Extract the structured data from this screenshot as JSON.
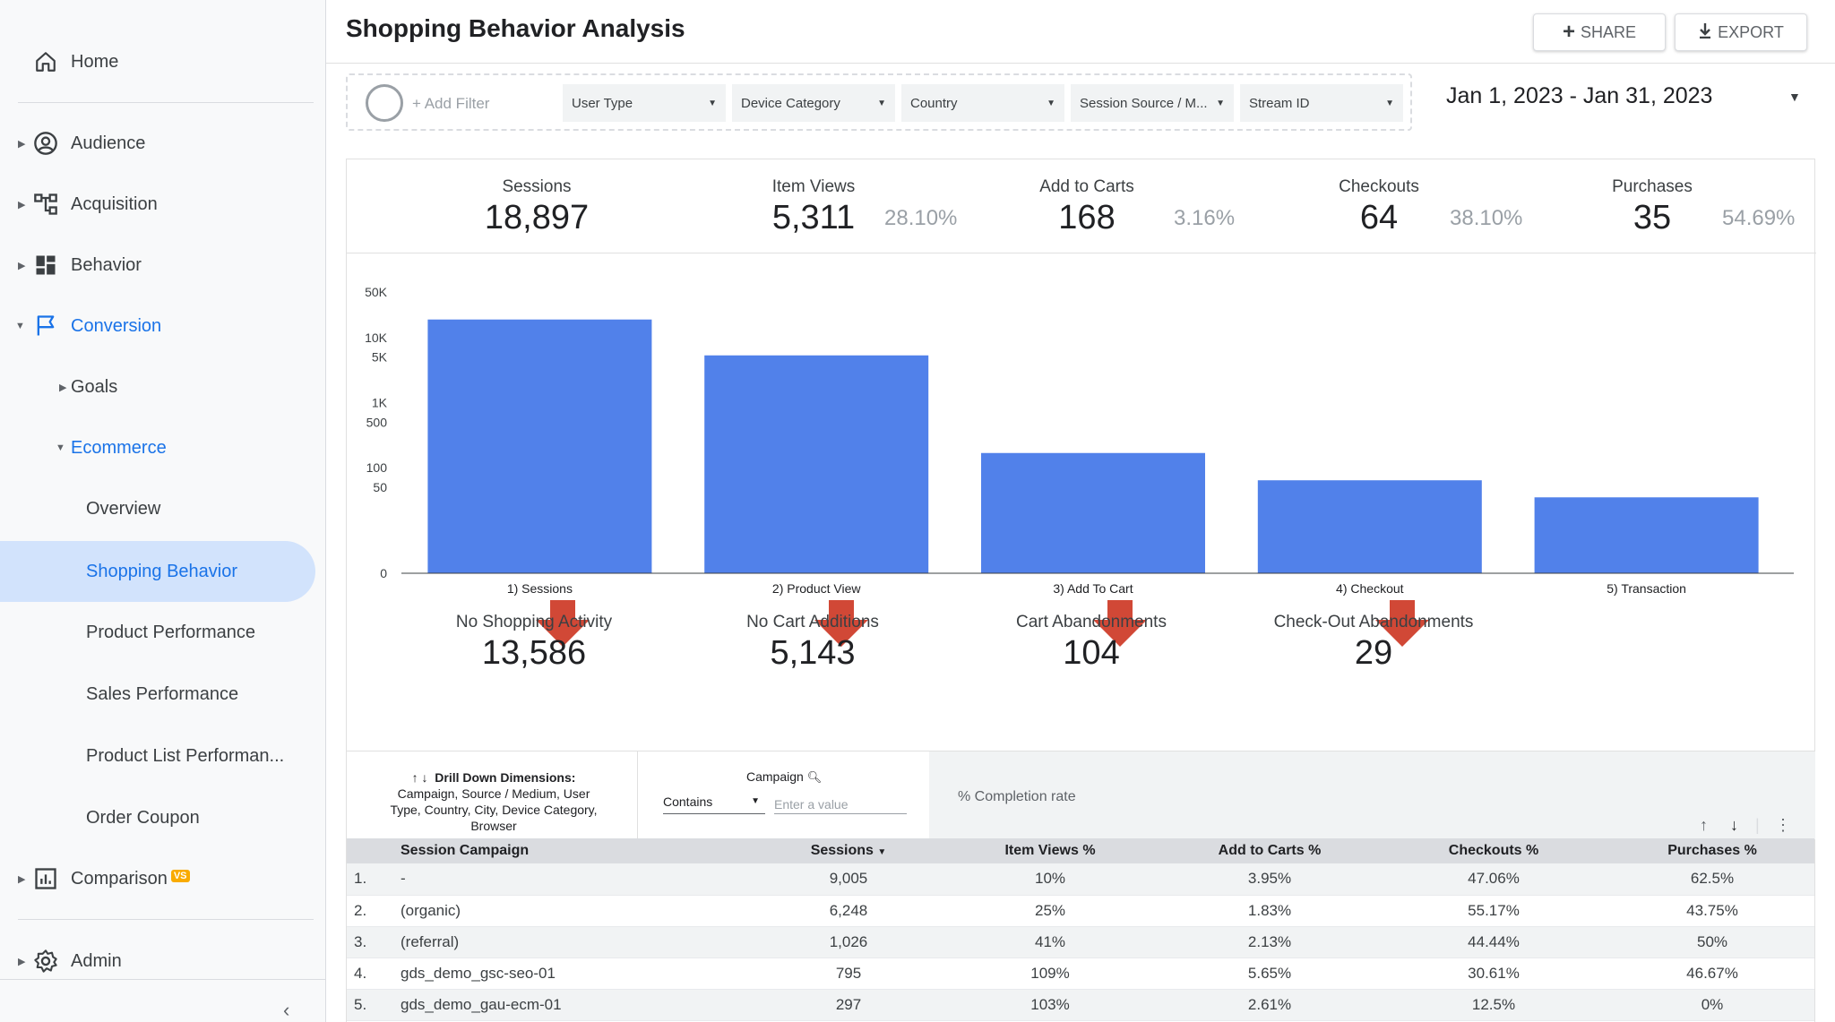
{
  "sidebar": {
    "items": [
      {
        "label": "Home"
      },
      {
        "label": "Audience"
      },
      {
        "label": "Acquisition"
      },
      {
        "label": "Behavior"
      },
      {
        "label": "Conversion"
      },
      {
        "label": "Goals"
      },
      {
        "label": "Ecommerce"
      },
      {
        "label": "Overview"
      },
      {
        "label": "Shopping Behavior"
      },
      {
        "label": "Product Performance"
      },
      {
        "label": "Sales Performance"
      },
      {
        "label": "Product List Performan..."
      },
      {
        "label": "Order Coupon"
      },
      {
        "label": "Comparison"
      },
      {
        "label": "Admin"
      }
    ],
    "comparison_badge": "VS"
  },
  "header": {
    "title": "Shopping Behavior Analysis",
    "share_label": "SHARE",
    "export_label": "EXPORT"
  },
  "filters": {
    "add_filter_label": "+ Add Filter",
    "dropdowns": [
      "User Type",
      "Device Category",
      "Country",
      "Session Source / M...",
      "Stream ID"
    ],
    "date_range": "Jan 1, 2023 - Jan 31, 2023"
  },
  "kpis": [
    {
      "label": "Sessions",
      "value": "18,897",
      "pct": ""
    },
    {
      "label": "Item Views",
      "value": "5,311",
      "pct": "28.10%"
    },
    {
      "label": "Add to Carts",
      "value": "168",
      "pct": "3.16%"
    },
    {
      "label": "Checkouts",
      "value": "64",
      "pct": "38.10%"
    },
    {
      "label": "Purchases",
      "value": "35",
      "pct": "54.69%"
    }
  ],
  "chart_data": {
    "type": "bar",
    "categories": [
      "1) Sessions",
      "2) Product View",
      "3) Add To Cart",
      "4) Checkout",
      "5) Transaction"
    ],
    "values": [
      18897,
      5311,
      168,
      64,
      35
    ],
    "yscale": "log",
    "yticks": [
      "50K",
      "10K",
      "5K",
      "1K",
      "500",
      "100",
      "50",
      "0"
    ],
    "bar_color": "#5181ea"
  },
  "dropoffs": [
    {
      "label": "No Shopping Activity",
      "value": "13,586"
    },
    {
      "label": "No Cart Additions",
      "value": "5,143"
    },
    {
      "label": "Cart Abandonments",
      "value": "104"
    },
    {
      "label": "Check-Out Abandonments",
      "value": "29"
    }
  ],
  "controls": {
    "drill_title": "Drill Down Dimensions:",
    "drill_dims": "Campaign, Source / Medium, User Type, Country, City, Device Category, Browser",
    "campaign_label": "Campaign",
    "contains_label": "Contains",
    "value_placeholder": "Enter a value",
    "completion_label": "% Completion rate"
  },
  "table": {
    "headers": [
      "Session Campaign",
      "Sessions",
      "Item Views %",
      "Add to Carts %",
      "Checkouts %",
      "Purchases %"
    ],
    "rows": [
      {
        "num": "1.",
        "campaign": "-",
        "sessions": "9,005",
        "item_views": "10%",
        "add_to_carts": "3.95%",
        "checkouts": "47.06%",
        "purchases": "62.5%"
      },
      {
        "num": "2.",
        "campaign": "(organic)",
        "sessions": "6,248",
        "item_views": "25%",
        "add_to_carts": "1.83%",
        "checkouts": "55.17%",
        "purchases": "43.75%"
      },
      {
        "num": "3.",
        "campaign": "(referral)",
        "sessions": "1,026",
        "item_views": "41%",
        "add_to_carts": "2.13%",
        "checkouts": "44.44%",
        "purchases": "50%"
      },
      {
        "num": "4.",
        "campaign": "gds_demo_gsc-seo-01",
        "sessions": "795",
        "item_views": "109%",
        "add_to_carts": "5.65%",
        "checkouts": "30.61%",
        "purchases": "46.67%"
      },
      {
        "num": "5.",
        "campaign": "gds_demo_gau-ecm-01",
        "sessions": "297",
        "item_views": "103%",
        "add_to_carts": "2.61%",
        "checkouts": "12.5%",
        "purchases": "0%"
      }
    ]
  }
}
